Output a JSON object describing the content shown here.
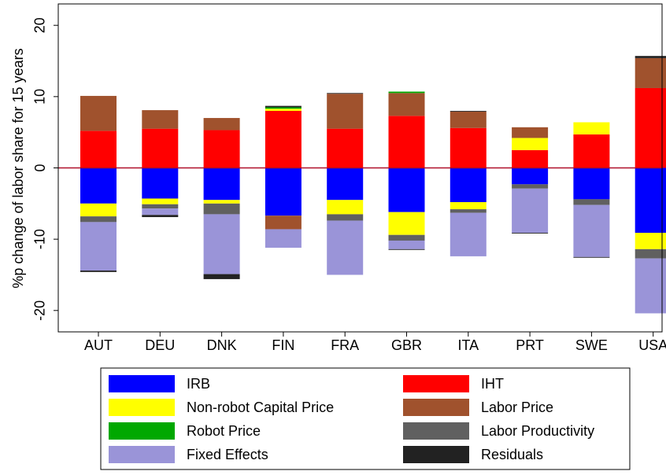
{
  "chart_data": {
    "type": "bar",
    "stacked": true,
    "y_label": "%p change of labor share for 15 years",
    "categories": [
      "AUT",
      "DEU",
      "DNK",
      "FIN",
      "FRA",
      "GBR",
      "ITA",
      "PRT",
      "SWE",
      "USA"
    ],
    "series": [
      {
        "name": "IRB",
        "color": "#0000ff",
        "values": [
          -5.0,
          -4.3,
          -4.5,
          -6.7,
          -4.5,
          -6.2,
          -4.8,
          -2.3,
          -4.4,
          -9.1
        ]
      },
      {
        "name": "IHT",
        "color": "#ff0000",
        "values": [
          5.2,
          5.5,
          5.3,
          8.0,
          5.5,
          7.3,
          5.6,
          2.5,
          4.7,
          11.2
        ]
      },
      {
        "name": "Non-robot Capital Price",
        "color": "#ffff00",
        "values": [
          -1.8,
          -0.8,
          -0.5,
          0.3,
          -2.0,
          -3.2,
          -1.0,
          1.7,
          1.7,
          -2.3
        ]
      },
      {
        "name": "Labor Price",
        "color": "#a0522d",
        "values": [
          4.9,
          2.6,
          1.7,
          -1.9,
          4.9,
          3.2,
          2.3,
          1.5,
          0,
          4.2
        ]
      },
      {
        "name": "Robot Price",
        "color": "#00a800",
        "values": [
          0,
          0,
          0,
          0.2,
          0,
          0.2,
          0,
          0,
          0,
          0
        ]
      },
      {
        "name": "Labor Productivity",
        "color": "#606060",
        "values": [
          -0.8,
          -0.6,
          -1.5,
          0,
          -0.9,
          -0.8,
          -0.5,
          -0.6,
          -0.8,
          -1.3
        ]
      },
      {
        "name": "Fixed Effects",
        "color": "#9a94d8",
        "values": [
          -6.8,
          -0.9,
          -8.4,
          -2.6,
          -7.6,
          -1.2,
          -6.1,
          -6.2,
          -7.3,
          -7.7
        ]
      },
      {
        "name": "Residuals",
        "color": "#222222",
        "values": [
          -0.2,
          -0.3,
          -0.7,
          0.2,
          0.1,
          -0.1,
          0.1,
          -0.1,
          -0.1,
          0.3
        ]
      }
    ],
    "ylim": [
      -23,
      23
    ],
    "yticks": [
      -20,
      -10,
      0,
      10,
      20
    ],
    "legend": "bottom"
  }
}
